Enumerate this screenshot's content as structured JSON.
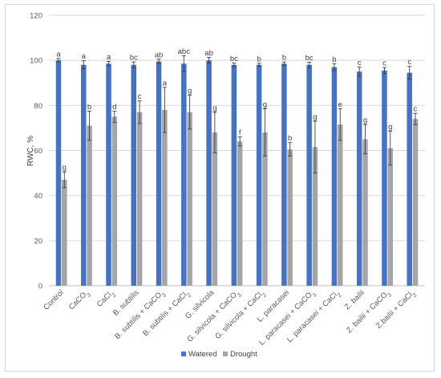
{
  "chart_data": {
    "type": "bar",
    "title": "",
    "ylabel": "RWC, %",
    "xlabel": "",
    "ylim": [
      0,
      120
    ],
    "yticks": [
      0,
      20,
      40,
      60,
      80,
      100,
      120
    ],
    "grid": "horizontal",
    "legend_position": "bottom",
    "categories": [
      [
        {
          "t": "Control"
        }
      ],
      [
        {
          "t": "CaCO"
        },
        {
          "t": "3",
          "sub": true
        }
      ],
      [
        {
          "t": "CaCl"
        },
        {
          "t": "2",
          "sub": true
        }
      ],
      [
        {
          "t": "B. subtilis"
        }
      ],
      [
        {
          "t": "B. subtilis + CaCO"
        },
        {
          "t": "3",
          "sub": true
        }
      ],
      [
        {
          "t": "B. subtilis + CaCl"
        },
        {
          "t": "2",
          "sub": true
        }
      ],
      [
        {
          "t": "G. silvicola"
        }
      ],
      [
        {
          "t": "G. silvicola + CaCO"
        },
        {
          "t": "3",
          "sub": true
        }
      ],
      [
        {
          "t": "G. silvicola + CaCl"
        },
        {
          "t": "2",
          "sub": true
        }
      ],
      [
        {
          "t": "L. paracasei"
        }
      ],
      [
        {
          "t": "L. paracasei + CaCO"
        },
        {
          "t": "3",
          "sub": true
        }
      ],
      [
        {
          "t": "L. paracasei + CaCl"
        },
        {
          "t": "2",
          "sub": true
        }
      ],
      [
        {
          "t": "Z. bailii"
        }
      ],
      [
        {
          "t": "Z. bailii + CaCO"
        },
        {
          "t": "3",
          "sub": true
        }
      ],
      [
        {
          "t": "Z.bailii + CaCl"
        },
        {
          "t": "2",
          "sub": true
        }
      ]
    ],
    "series": [
      {
        "name": "Watered",
        "color": "#4472c4",
        "values": [
          100,
          98,
          98.5,
          98,
          99.5,
          98.5,
          100,
          98,
          98,
          98.5,
          98,
          97,
          95,
          95.5,
          94.5
        ],
        "errors": [
          0.8,
          1.8,
          1,
          1.3,
          1,
          3.5,
          1.3,
          0.8,
          0.7,
          0.8,
          1.2,
          1.5,
          2,
          1.3,
          2.8
        ],
        "letters": [
          "a",
          "a",
          "a",
          "bc",
          "ab",
          "abc",
          "ab",
          "bc",
          "b",
          "b",
          "bc",
          "b",
          "c",
          "c",
          "c"
        ]
      },
      {
        "name": "Drought",
        "color": "#a5a5a5",
        "values": [
          47,
          71,
          75,
          77,
          78,
          77,
          68,
          64,
          68,
          60.5,
          61.5,
          71.5,
          65,
          61,
          74
        ],
        "errors": [
          3.5,
          6.5,
          2.5,
          5,
          10,
          7.5,
          9,
          2,
          10.5,
          3,
          11.5,
          7,
          6.5,
          7.5,
          2.5
        ],
        "letters": [
          "g",
          "b",
          "d",
          "c",
          "a",
          "g",
          "g",
          "f",
          "g",
          "b",
          "g",
          "e",
          "g",
          "g",
          "c"
        ]
      }
    ]
  }
}
